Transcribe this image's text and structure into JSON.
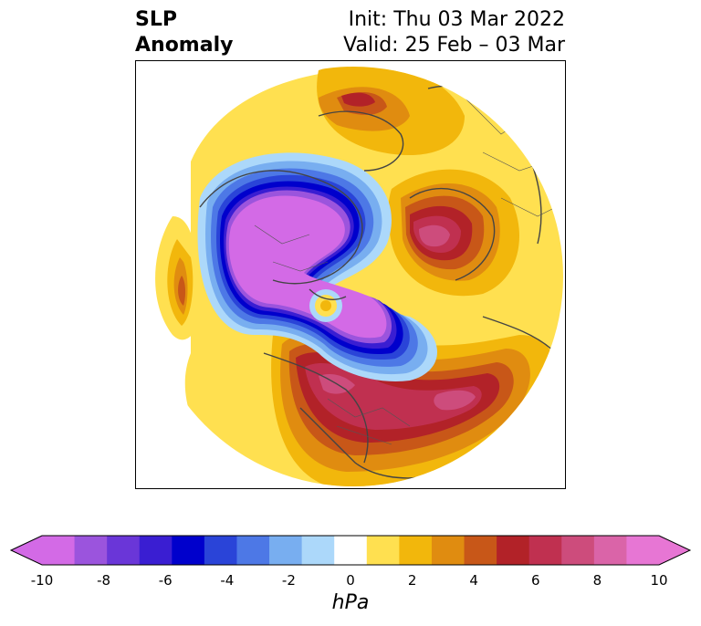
{
  "title": {
    "left_line1": "SLP",
    "left_line2": "Anomaly",
    "right_line1": "Init: Thu 03 Mar 2022",
    "right_line2": "Valid: 25 Feb – 03 Mar"
  },
  "map": {
    "projection": "north polar stereographic",
    "field": "sea level pressure anomaly"
  },
  "colorbar": {
    "units": "hPa",
    "extend": "both",
    "ticks": [
      "-10",
      "-8",
      "-6",
      "-4",
      "-2",
      "0",
      "2",
      "4",
      "6",
      "8",
      "10"
    ],
    "levels": [
      -10,
      -9,
      -8,
      -7,
      -6,
      -5,
      -4,
      -3,
      -2,
      -1,
      1,
      2,
      3,
      4,
      5,
      6,
      7,
      8,
      9,
      10
    ],
    "colors": [
      "#d36ae6",
      "#9b54dd",
      "#6a36d8",
      "#3a1ed2",
      "#0000cc",
      "#2a44d8",
      "#4d78e6",
      "#78aef0",
      "#acd8fa",
      "#ffffff",
      "#ffe050",
      "#f2b70c",
      "#e08c10",
      "#c85718",
      "#b22228",
      "#c03050",
      "#cd4c7c",
      "#da64a8",
      "#e776d4"
    ],
    "under_color": "#d36ae6",
    "over_color": "#e776d4"
  }
}
